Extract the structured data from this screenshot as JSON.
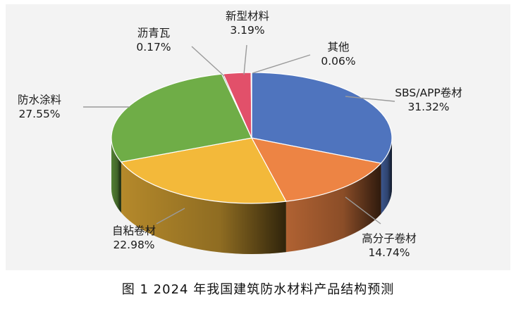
{
  "chart_data": {
    "type": "pie",
    "style": "3d",
    "slices": [
      {
        "label": "SBS/APP卷材",
        "percent": "31.32%",
        "value": 31.32,
        "color": "#4f74be"
      },
      {
        "label": "高分子卷材",
        "percent": "14.74%",
        "value": 14.74,
        "color": "#ed8444"
      },
      {
        "label": "自粘卷材",
        "percent": "22.98%",
        "value": 22.98,
        "color": "#f3b93a"
      },
      {
        "label": "防水涂料",
        "percent": "27.55%",
        "value": 27.55,
        "color": "#6fad47"
      },
      {
        "label": "沥青瓦",
        "percent": "0.17%",
        "value": 0.17,
        "color": "#8a8a8a"
      },
      {
        "label": "新型材料",
        "percent": "3.19%",
        "value": 3.19,
        "color": "#e2506a"
      },
      {
        "label": "其他",
        "percent": "0.06%",
        "value": 0.06,
        "color": "#3a8fc4"
      }
    ],
    "title": "图 1  2024 年我国建筑防水材料产品结构预测"
  }
}
